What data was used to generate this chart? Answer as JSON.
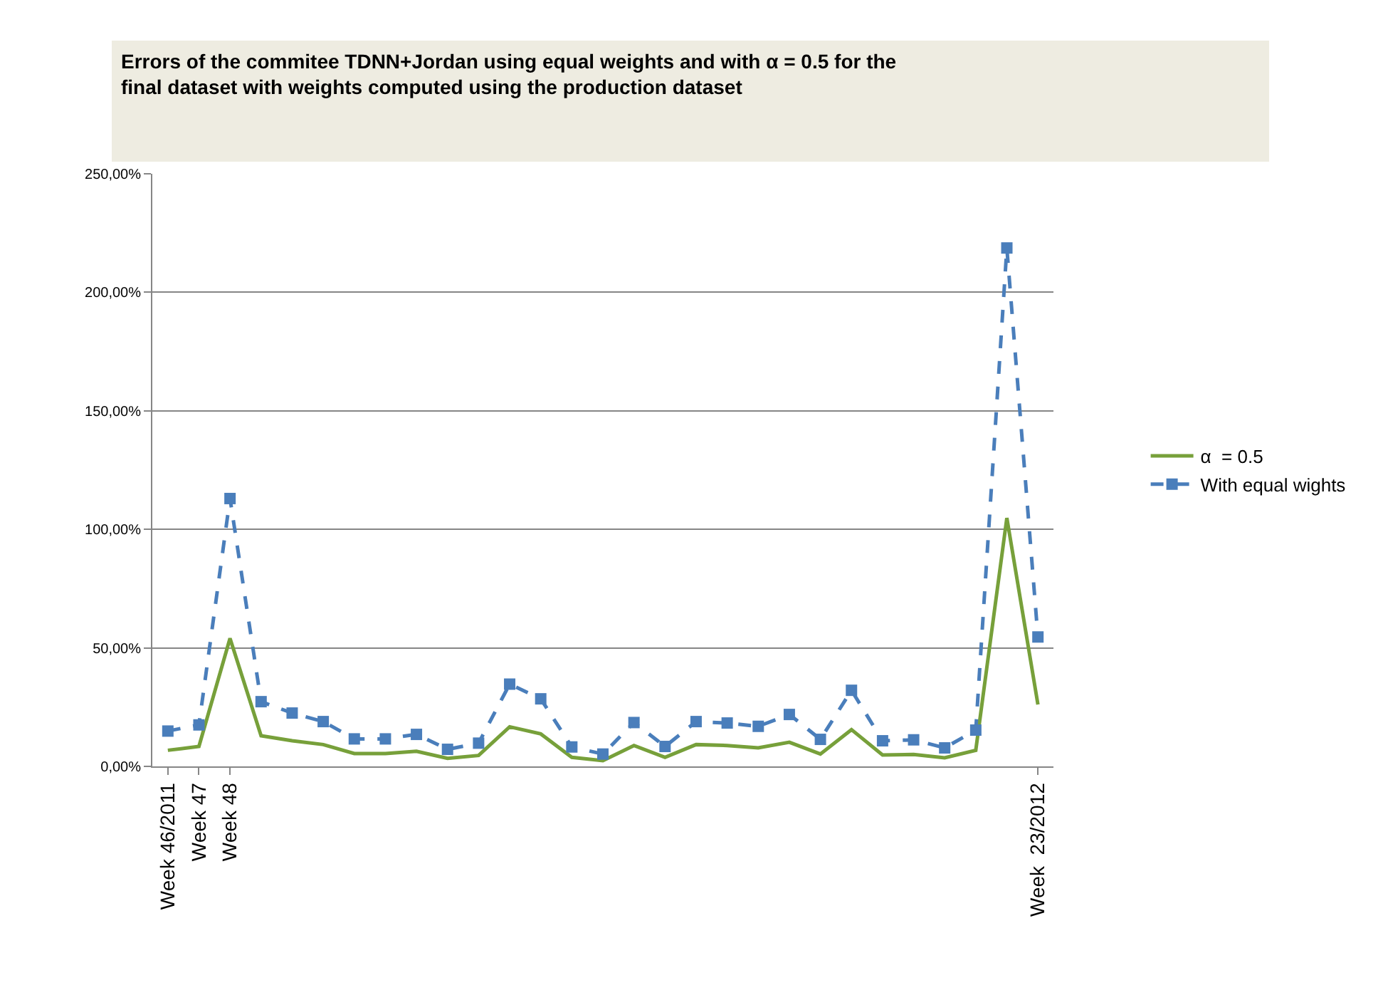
{
  "chart_data": {
    "type": "line",
    "title": "Errors of the commitee TDNN+Jordan using equal weights and with α = 0.5 for the\nfinal dataset with weights computed using the production dataset",
    "categories": [
      "Week 46/2011",
      "Week 47",
      "Week 48",
      null,
      null,
      null,
      null,
      null,
      null,
      null,
      null,
      null,
      null,
      null,
      null,
      null,
      null,
      null,
      null,
      null,
      null,
      null,
      null,
      null,
      null,
      null,
      null,
      null,
      "Week  23/2012"
    ],
    "series": [
      {
        "name": "α  = 0.5",
        "color": "#77a03a",
        "line_style": "solid",
        "marker": "none",
        "values": [
          6.8,
          8.4,
          54,
          12.9,
          10.8,
          9.2,
          5.4,
          5.4,
          6.4,
          3.4,
          4.6,
          16.7,
          13.7,
          3.8,
          2.4,
          8.8,
          3.8,
          9.2,
          8.8,
          7.8,
          10.2,
          5.2,
          15.5,
          4.8,
          5,
          3.6,
          6.8,
          104.8,
          26.1
        ]
      },
      {
        "name": "With equal wights",
        "color": "#4a7ebb",
        "line_style": "dashed",
        "marker": "square",
        "values": [
          14.9,
          17.5,
          113,
          27.3,
          22.5,
          18.9,
          11.6,
          11.6,
          13.5,
          7.2,
          9.8,
          34.7,
          28.5,
          8.2,
          5.2,
          18.5,
          8.4,
          18.9,
          18.3,
          16.9,
          21.9,
          11.4,
          32.1,
          10.8,
          11.2,
          7.8,
          15.3,
          218.7,
          54.6
        ]
      }
    ],
    "ylim": [
      0,
      250
    ],
    "yticks": [
      {
        "value": 0,
        "label": "0,00%"
      },
      {
        "value": 50,
        "label": "50,00%"
      },
      {
        "value": 100,
        "label": "100,00%"
      },
      {
        "value": 150,
        "label": "150,00%"
      },
      {
        "value": 200,
        "label": "200,00%"
      },
      {
        "value": 250,
        "label": "250,00%"
      }
    ],
    "grid": "y",
    "legend": "right"
  }
}
